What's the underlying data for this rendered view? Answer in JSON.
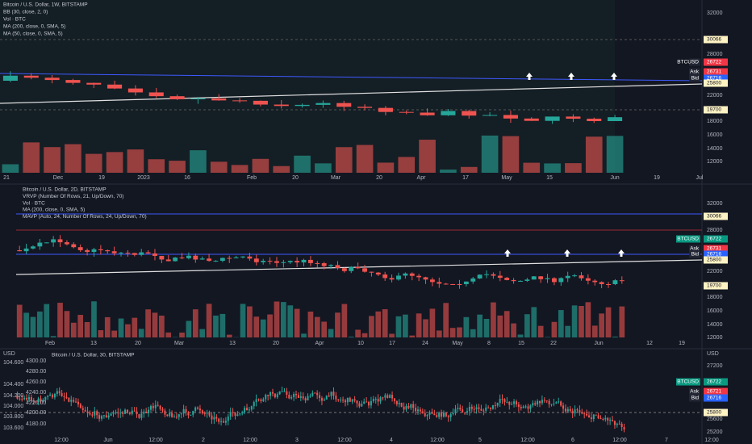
{
  "panels": [
    {
      "legend": [
        "Bitcoin / U.S. Dollar, 1W, BITSTAMP",
        "BB (30, close, 2, 0)",
        "Vol · BTC",
        "MA (200, close, 0, SMA, 5)",
        "MA (50, close, 0, SMA, 5)"
      ],
      "price_scale": [
        "32000",
        "30066",
        "28000",
        "BTCUSD",
        "26722",
        "Ask",
        "26731",
        "Bid",
        "26716",
        "25800",
        "22000",
        "19700",
        "18000",
        "16000",
        "14000",
        "12000"
      ],
      "time_axis": [
        "21",
        "Dec",
        "19",
        "2023",
        "16",
        "Feb",
        "20",
        "Mar",
        "20",
        "Apr",
        "17",
        "May",
        "15",
        "Jun",
        "19",
        "Jul"
      ]
    },
    {
      "legend": [
        "Bitcoin / U.S. Dollar, 2D, BITSTAMP",
        "VRVP (Number Of Rows, 21, Up/Down, 70)",
        "Vol · BTC",
        "MA (200, close, 0, SMA, 5)",
        "MAVP (Auto, 24, Number Of Rows, 24, Up/Down, 70)"
      ],
      "price_scale": [
        "32000",
        "30066",
        "28000",
        "BTCUSD",
        "26722",
        "Ask",
        "26731",
        "Bid",
        "26716",
        "25800",
        "22000",
        "19700",
        "18000",
        "16000",
        "14000",
        "12000"
      ],
      "time_axis": [
        "Feb",
        "13",
        "20",
        "Mar",
        "13",
        "20",
        "Apr",
        "10",
        "17",
        "24",
        "May",
        "8",
        "15",
        "22",
        "Jun",
        "12",
        "19"
      ]
    },
    {
      "legend": [
        "Bitcoin / U.S. Dollar, 30, BITSTAMP"
      ],
      "left_scale_a": [
        "USD",
        "104.600",
        "104.400",
        "104.200",
        "104.000",
        "103.800",
        "103.600"
      ],
      "left_scale_b": [
        "4300.00",
        "4280.00",
        "4260.00",
        "4240.00",
        "4220.00",
        "4200.00",
        "4180.00"
      ],
      "price_scale": [
        "USD",
        "27200",
        "BTCUSD",
        "26722",
        "Ask",
        "26721",
        "Bid",
        "26716",
        "25800",
        "25600",
        "25200"
      ],
      "time_axis": [
        "12:00",
        "Jun",
        "12:00",
        "2",
        "12:00",
        "3",
        "12:00",
        "4",
        "12:00",
        "5",
        "12:00",
        "6",
        "12:00",
        "7",
        "12:00"
      ]
    }
  ]
}
